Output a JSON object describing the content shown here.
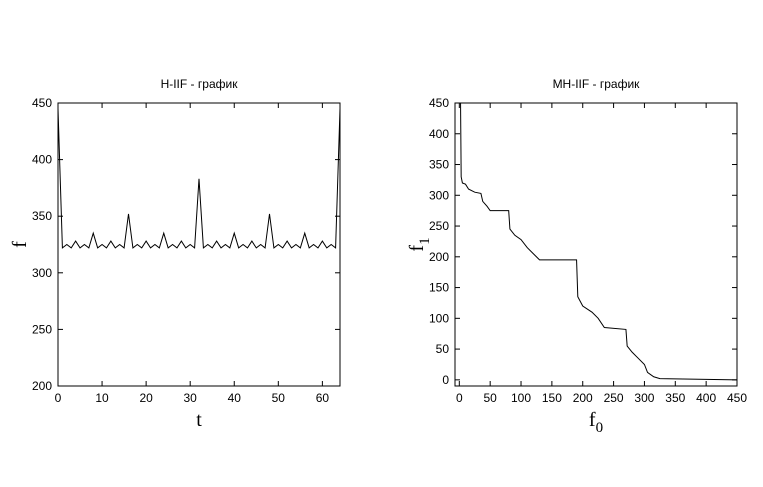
{
  "chart_data": [
    {
      "type": "line",
      "title": "H-IIF - график",
      "xlabel": {
        "text": "t"
      },
      "ylabel": {
        "text": "f"
      },
      "x": [
        0,
        1,
        2,
        3,
        4,
        5,
        6,
        7,
        8,
        9,
        10,
        11,
        12,
        13,
        14,
        15,
        16,
        17,
        18,
        19,
        20,
        21,
        22,
        23,
        24,
        25,
        26,
        27,
        28,
        29,
        30,
        31,
        32,
        33,
        34,
        35,
        36,
        37,
        38,
        39,
        40,
        41,
        42,
        43,
        44,
        45,
        46,
        47,
        48,
        49,
        50,
        51,
        52,
        53,
        54,
        55,
        56,
        57,
        58,
        59,
        60,
        61,
        62,
        63,
        64
      ],
      "series": [
        {
          "color": "#000000",
          "values": [
            445,
            322,
            325,
            322,
            328,
            322,
            325,
            322,
            335,
            322,
            325,
            322,
            328,
            322,
            325,
            322,
            352,
            322,
            325,
            322,
            328,
            322,
            325,
            322,
            335,
            322,
            325,
            322,
            328,
            322,
            325,
            322,
            383,
            322,
            325,
            322,
            328,
            322,
            325,
            322,
            335,
            322,
            325,
            322,
            328,
            322,
            325,
            322,
            352,
            322,
            325,
            322,
            328,
            322,
            325,
            322,
            335,
            322,
            325,
            322,
            328,
            322,
            325,
            322,
            445
          ]
        }
      ],
      "xlim": [
        0,
        64
      ],
      "xticks": [
        0,
        10,
        20,
        30,
        40,
        50,
        60
      ],
      "ylim": [
        200,
        450
      ],
      "yticks": [
        200,
        250,
        300,
        350,
        400,
        450
      ]
    },
    {
      "type": "line",
      "title": "MH-IIF - график",
      "xlabel": {
        "text": "f",
        "subscript": "0"
      },
      "ylabel": {
        "text": "f",
        "subscript": "1"
      },
      "x": [
        0,
        2,
        3,
        5,
        10,
        15,
        25,
        35,
        38,
        45,
        50,
        80,
        82,
        90,
        100,
        110,
        120,
        130,
        190,
        192,
        200,
        215,
        225,
        235,
        270,
        272,
        280,
        290,
        300,
        305,
        315,
        325,
        450
      ],
      "series": [
        {
          "color": "#000000",
          "values": [
            450,
            450,
            330,
            320,
            318,
            310,
            305,
            303,
            290,
            282,
            275,
            275,
            245,
            235,
            228,
            215,
            205,
            195,
            195,
            135,
            120,
            110,
            100,
            85,
            82,
            55,
            45,
            35,
            25,
            12,
            5,
            2,
            0
          ]
        }
      ],
      "xlim": [
        -7,
        450
      ],
      "xticks": [
        0,
        50,
        100,
        150,
        200,
        250,
        300,
        350,
        400,
        450
      ],
      "ylim": [
        -10,
        450
      ],
      "yticks": [
        0,
        50,
        100,
        150,
        200,
        250,
        300,
        350,
        400,
        450
      ]
    }
  ]
}
